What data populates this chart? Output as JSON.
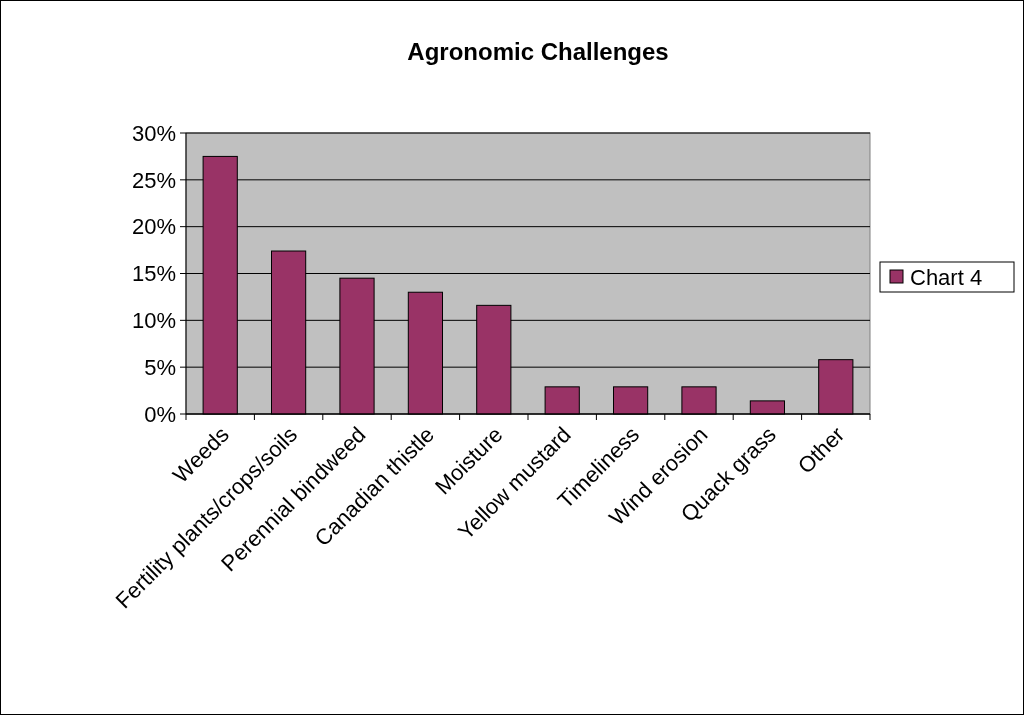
{
  "chart_data": {
    "type": "bar",
    "title": "Agronomic Challenges",
    "categories": [
      "Weeds",
      "Fertility plants/crops/soils",
      "Perennial bindweed",
      "Canadian thistle",
      "Moisture",
      "Yellow mustard",
      "Timeliness",
      "Wind erosion",
      "Quack grass",
      "Other"
    ],
    "series": [
      {
        "name": "Chart 4",
        "color": "#993366",
        "values": [
          27.5,
          17.4,
          14.5,
          13.0,
          11.6,
          2.9,
          2.9,
          2.9,
          1.4,
          5.8
        ]
      }
    ],
    "ylim": [
      0,
      30
    ],
    "yticks": [
      {
        "value": 0,
        "label": "0%"
      },
      {
        "value": 5,
        "label": "5%"
      },
      {
        "value": 10,
        "label": "10%"
      },
      {
        "value": 15,
        "label": "15%"
      },
      {
        "value": 20,
        "label": "20%"
      },
      {
        "value": 25,
        "label": "25%"
      },
      {
        "value": 30,
        "label": "30%"
      }
    ],
    "grid": "y",
    "legend": "right"
  }
}
